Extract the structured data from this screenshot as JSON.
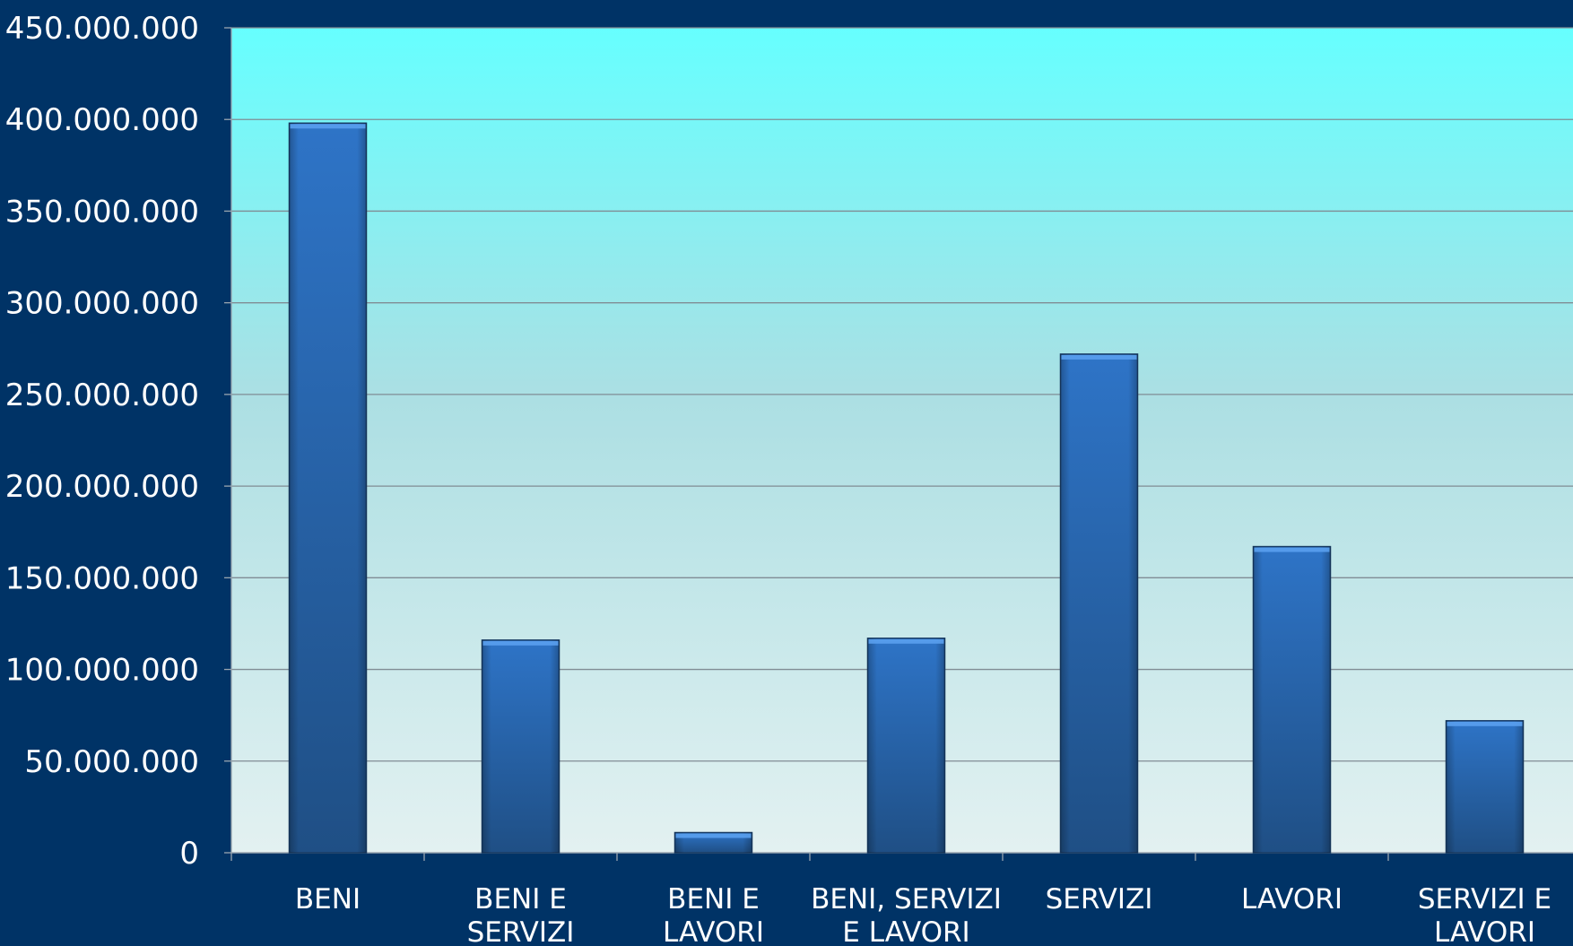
{
  "colors": {
    "background": "#003366",
    "plot_top": "#66ffff",
    "plot_bottom": "#e3f1f1",
    "bar_light": "#2e74c7",
    "bar_dark": "#1f4f85",
    "gridline": "#808c94",
    "text": "#ffffff"
  },
  "chart_data": {
    "type": "bar",
    "title": "",
    "xlabel": "",
    "ylabel": "",
    "ylim": [
      0,
      450000000
    ],
    "grid": true,
    "legend": "none",
    "yticks": [
      0,
      50000000,
      100000000,
      150000000,
      200000000,
      250000000,
      300000000,
      350000000,
      400000000,
      450000000
    ],
    "ytick_labels": [
      "0",
      "50.000.000",
      "100.000.000",
      "150.000.000",
      "200.000.000",
      "250.000.000",
      "300.000.000",
      "350.000.000",
      "400.000.000",
      "450.000.000"
    ],
    "categories": [
      [
        "BENI"
      ],
      [
        "BENI E",
        "SERVIZI"
      ],
      [
        "BENI E",
        "LAVORI"
      ],
      [
        "BENI, SERVIZI",
        "E LAVORI"
      ],
      [
        "SERVIZI"
      ],
      [
        "LAVORI"
      ],
      [
        "SERVIZI E",
        "LAVORI"
      ]
    ],
    "values": [
      398000000,
      116000000,
      11000000,
      117000000,
      272000000,
      167000000,
      72000000
    ]
  }
}
